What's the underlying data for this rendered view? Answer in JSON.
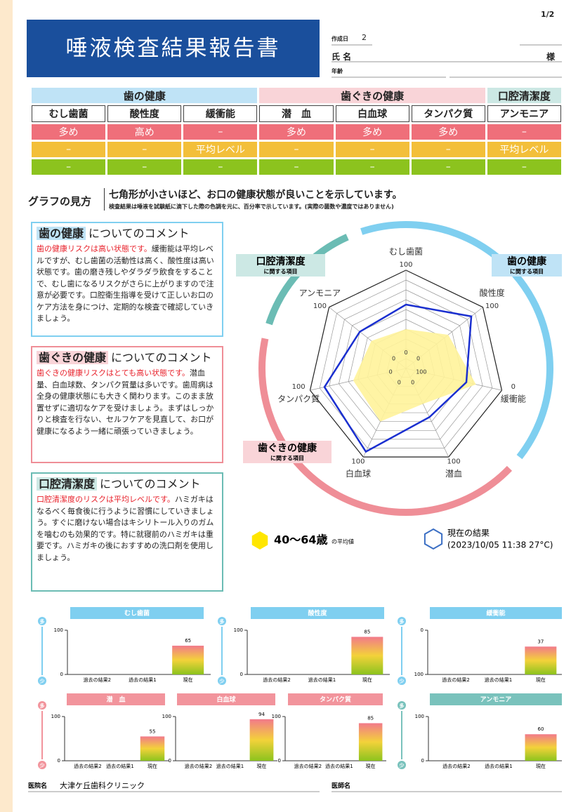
{
  "page_number": "1/2",
  "header": {
    "title": "唾液検査結果報告書",
    "created_label": "作成日",
    "created_value": "2",
    "name_label": "氏 名",
    "honorific": "様",
    "age_label": "年齢"
  },
  "table": {
    "groups": [
      {
        "label": "歯の健康",
        "span": 3,
        "color": "#bfe3f6"
      },
      {
        "label": "歯ぐきの健康",
        "span": 3,
        "color": "#f9d4d8"
      },
      {
        "label": "口腔清潔度",
        "span": 1,
        "color": "#cce8e4"
      }
    ],
    "columns": [
      "むし歯菌",
      "酸性度",
      "緩衝能",
      "潜　血",
      "白血球",
      "タンパク質",
      "アンモニア"
    ],
    "rows": [
      {
        "color": "#ef6f7a",
        "cells": [
          "多め",
          "高め",
          "–",
          "多め",
          "多め",
          "多め",
          "–"
        ]
      },
      {
        "color": "#f3bf3a",
        "cells": [
          "–",
          "–",
          "平均レベル",
          "–",
          "–",
          "–",
          "平均レベル"
        ]
      },
      {
        "color": "#8cc31e",
        "cells": [
          "–",
          "–",
          "–",
          "–",
          "–",
          "–",
          "–"
        ]
      }
    ]
  },
  "graph_guide": {
    "label": "グラフの見方",
    "main": "七角形が小さいほど、お口の健康状態が良いことを示しています。",
    "sub": "検査結果は唾液を試験紙に滴下した際の色調を元に、百分率で示しています。(実際の菌数や濃度ではありません)"
  },
  "comments": [
    {
      "heading": "歯の健康",
      "suffix": "についてのコメント",
      "color": "#7fcff0",
      "bg": "#bfe3f6",
      "highlight": "歯の健康リスクは高い状態です。",
      "body": "緩衝能は平均レベルですが、むし歯菌の活動性は高く、酸性度は高い状態です。歯の磨き残しやダラダラ飲食をすることで、むし歯になるリスクがさらに上がりますので注意が必要です。口腔衛生指導を受けて正しいお口のケア方法を身につけ、定期的な検査で確認していきましょう。"
    },
    {
      "heading": "歯ぐきの健康",
      "suffix": "についてのコメント",
      "color": "#ef8e97",
      "bg": "#f9d4d8",
      "highlight": "歯ぐきの健康リスクはとても高い状態です。",
      "body": "潜血量、白血球数、タンパク質量は多いです。歯周病は全身の健康状態にも大きく関わります。このまま放置せずに適切なケアを受けましょう。まずはしっかりと検査を行ない、セルフケアを見直して、お口が健康になるよう一緒に頑張っていきましょう。"
    },
    {
      "heading": "口腔清潔度",
      "suffix": "についてのコメント",
      "color": "#6bbcb4",
      "bg": "#cce8e4",
      "highlight": "口腔清潔度のリスクは平均レベルです。",
      "body": "ハミガキはなるべく毎食後に行うように習慣にしていきましょう。すぐに磨けない場合はキシリトール入りのガムを噛むのも効果的です。特に就寝前のハミガキは重要です。ハミガキの後におすすめの洗口剤を使用しましょう。"
    }
  ],
  "chart_data": [
    {
      "type": "radar",
      "axes": [
        {
          "label": "むし歯菌",
          "center": 0,
          "outer": 100
        },
        {
          "label": "酸性度",
          "center": 0,
          "outer": 100
        },
        {
          "label": "緩衝能",
          "center": 100,
          "outer": 0
        },
        {
          "label": "潜血",
          "center": 0,
          "outer": 100
        },
        {
          "label": "白血球",
          "center": 0,
          "outer": 100
        },
        {
          "label": "タンパク質",
          "center": 0,
          "outer": 100
        },
        {
          "label": "アンモニア",
          "center": 0,
          "outer": 100
        }
      ],
      "rlim": [
        0,
        100
      ],
      "rticks": [
        10,
        20,
        30,
        40,
        50,
        60,
        70,
        80,
        90,
        100
      ],
      "series": [
        {
          "name": "40〜64歳",
          "suffix": "の平均値",
          "color": "#fff39a",
          "values": [
            40,
            55,
            27,
            40,
            60,
            55,
            45
          ]
        },
        {
          "name": "現在の結果",
          "detail": "(2023/10/05 11:38 27°C)",
          "color": "#1a2fd0",
          "values": [
            65,
            85,
            37,
            55,
            94,
            85,
            60
          ]
        }
      ],
      "ring_labels": [
        {
          "title": "口腔清潔度",
          "sub": "に関する項目",
          "color": "#6bbcb4",
          "bg": "#cce8e4"
        },
        {
          "title": "歯の健康",
          "sub": "に関する項目",
          "color": "#7fcff0",
          "bg": "#bfe3f6"
        },
        {
          "title": "歯ぐきの健康",
          "sub": "に関する項目",
          "color": "#ef8e97",
          "bg": "#f9d4d8"
        }
      ]
    },
    {
      "type": "bar",
      "title": "むし歯菌",
      "color": "#7fcff0",
      "categories": [
        "過去の結果2",
        "過去の結果1",
        "現在"
      ],
      "values": [
        null,
        null,
        65
      ],
      "ylim": [
        0,
        100
      ],
      "yticks": [
        0,
        100
      ]
    },
    {
      "type": "bar",
      "title": "酸性度",
      "color": "#7fcff0",
      "categories": [
        "過去の結果2",
        "過去の結果1",
        "現在"
      ],
      "values": [
        null,
        null,
        85
      ],
      "ylim": [
        0,
        100
      ],
      "yticks": [
        0,
        100
      ]
    },
    {
      "type": "bar",
      "title": "緩衝能",
      "color": "#7fcff0",
      "categories": [
        "過去の結果2",
        "過去の結果1",
        "現在"
      ],
      "values": [
        null,
        null,
        37
      ],
      "ylim": [
        100,
        0
      ],
      "yticks": [
        0,
        100
      ]
    },
    {
      "type": "bar",
      "title": "潜　血",
      "color": "#f2949c",
      "categories": [
        "過去の結果2",
        "過去の結果1",
        "現在"
      ],
      "values": [
        null,
        null,
        55
      ],
      "ylim": [
        0,
        100
      ],
      "yticks": [
        0,
        100
      ]
    },
    {
      "type": "bar",
      "title": "白血球",
      "color": "#f2949c",
      "categories": [
        "過去の結果2",
        "過去の結果1",
        "現在"
      ],
      "values": [
        null,
        null,
        94
      ],
      "ylim": [
        0,
        100
      ],
      "yticks": [
        0,
        100
      ]
    },
    {
      "type": "bar",
      "title": "タンパク質",
      "color": "#f2949c",
      "categories": [
        "過去の結果2",
        "過去の結果1",
        "現在"
      ],
      "values": [
        null,
        null,
        85
      ],
      "ylim": [
        0,
        100
      ],
      "yticks": [
        0,
        100
      ]
    },
    {
      "type": "bar",
      "title": "アンモニア",
      "color": "#79c2bc",
      "categories": [
        "過去の結果2",
        "過去の結果1",
        "現在"
      ],
      "values": [
        null,
        null,
        60
      ],
      "ylim": [
        0,
        100
      ],
      "yticks": [
        0,
        100
      ]
    }
  ],
  "scale_labels": {
    "high": "多",
    "low": "少"
  },
  "footer": {
    "clinic_label": "医院名",
    "clinic_name": "大津ケ丘歯科クリニック",
    "doctor_label": "医師名"
  }
}
